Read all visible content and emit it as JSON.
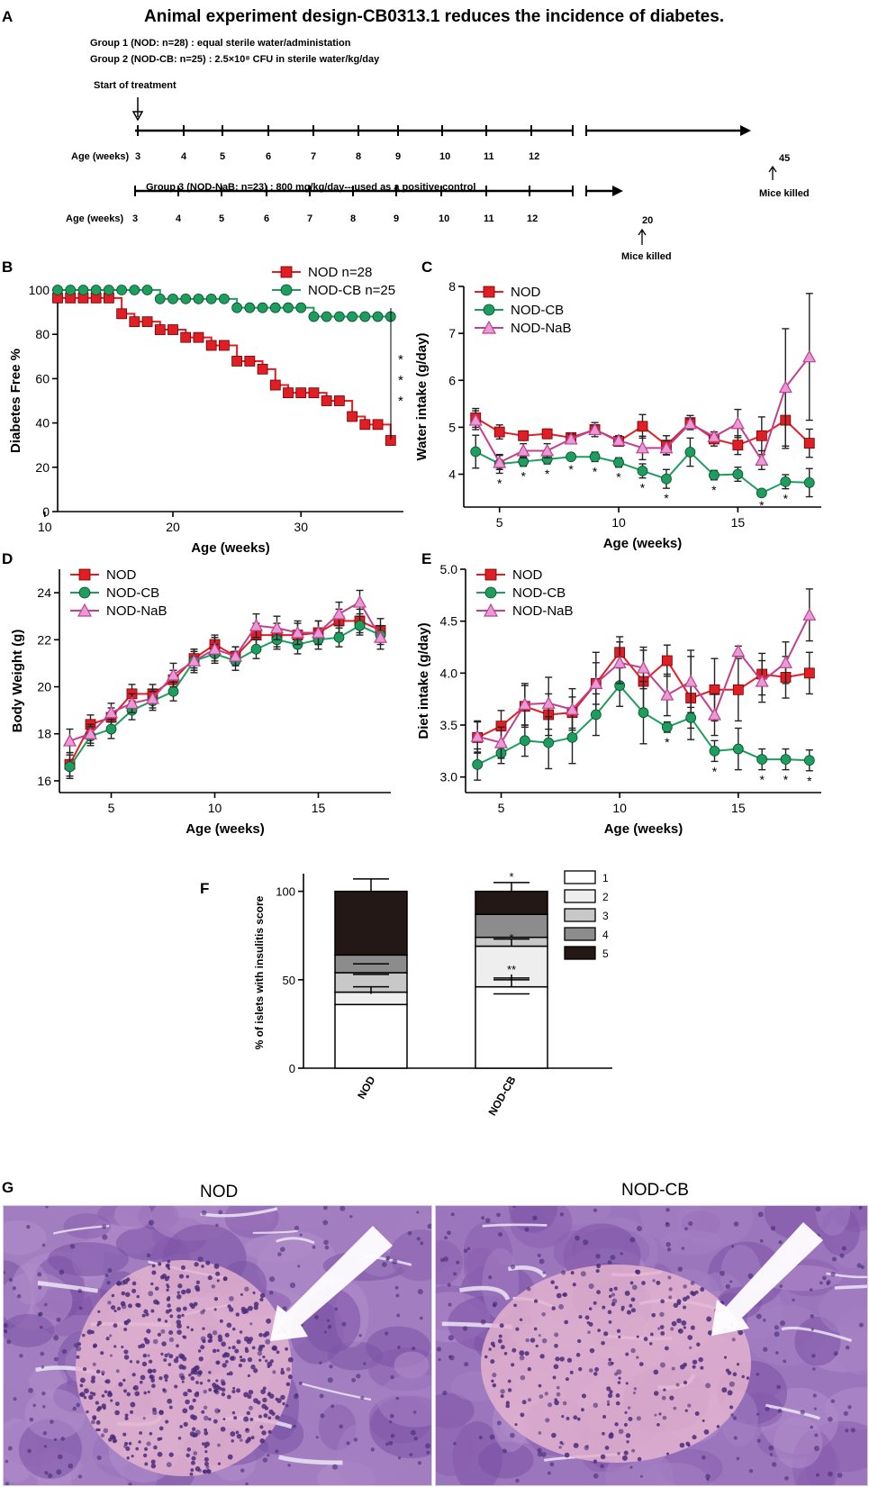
{
  "panelA": {
    "label": "A",
    "title": "Animal experiment design-CB0313.1 reduces the incidence of diabetes.",
    "group1": "Group 1 (NOD: n=28) : equal sterile water/administation",
    "group2": "Group 2 (NOD-CB: n=25) : 2.5×10⁸ CFU in sterile water/kg/day",
    "group3": "Group 3 (NOD-NaB: n=23) : 800 mg/kg/day---used  as a positive control",
    "start": "Start of treatment",
    "age_label": "Age (weeks)",
    "ages": [
      "3",
      "4",
      "5",
      "6",
      "7",
      "8",
      "9",
      "10",
      "11",
      "12"
    ],
    "end1": "45",
    "end2": "20",
    "killed": "Mice killed"
  },
  "chart_data": [
    {
      "panel": "B",
      "type": "line",
      "title": "",
      "xlabel": "Age (weeks)",
      "ylabel": "Diabetes Free %",
      "xlim": [
        11,
        38
      ],
      "ylim": [
        0,
        100
      ],
      "xticks": [
        10,
        20,
        30
      ],
      "yticks": [
        0,
        20,
        40,
        60,
        80,
        100
      ],
      "legend": "top-right",
      "annotation": "* * *",
      "series": [
        {
          "name": "NOD  n=28",
          "color": "#e01e26",
          "marker": "square",
          "x": [
            11,
            12,
            13,
            14,
            15,
            16,
            17,
            18,
            19,
            20,
            21,
            22,
            23,
            24,
            25,
            26,
            27,
            28,
            29,
            30,
            31,
            32,
            33,
            34,
            35,
            36,
            37
          ],
          "y": [
            96.4,
            96.4,
            96.4,
            96.4,
            96.4,
            89.3,
            85.7,
            85.7,
            82.1,
            82.1,
            78.6,
            78.6,
            75,
            75,
            67.9,
            67.9,
            64.3,
            57.1,
            53.6,
            53.6,
            53.6,
            50,
            50,
            42.9,
            39.3,
            39.3,
            32.1
          ]
        },
        {
          "name": "NOD-CB n=25",
          "color": "#1e9e5e",
          "marker": "circle",
          "x": [
            11,
            12,
            13,
            14,
            15,
            16,
            17,
            18,
            19,
            20,
            21,
            22,
            23,
            24,
            25,
            26,
            27,
            28,
            29,
            30,
            31,
            32,
            33,
            34,
            35,
            36,
            37
          ],
          "y": [
            100,
            100,
            100,
            100,
            100,
            100,
            100,
            100,
            96,
            96,
            96,
            96,
            96,
            96,
            92,
            92,
            92,
            92,
            92,
            92,
            88,
            88,
            88,
            88,
            88,
            88,
            88
          ]
        }
      ]
    },
    {
      "panel": "C",
      "type": "line",
      "xlabel": "Age (weeks)",
      "ylabel": "Water intake (g/day)",
      "xlim": [
        3.5,
        18.5
      ],
      "ylim": [
        3.3,
        8
      ],
      "xticks": [
        5,
        10,
        15
      ],
      "yticks": [
        4,
        5,
        6,
        7,
        8
      ],
      "legend": "top-left",
      "x": [
        4,
        5,
        6,
        7,
        8,
        9,
        10,
        11,
        12,
        13,
        14,
        15,
        16,
        17,
        18
      ],
      "series": [
        {
          "name": "NOD",
          "color": "#e01e26",
          "marker": "square",
          "y": [
            5.2,
            4.9,
            4.82,
            4.86,
            4.78,
            4.95,
            4.7,
            5.02,
            4.62,
            5.1,
            4.75,
            4.62,
            4.82,
            5.15,
            4.66
          ],
          "err": [
            0.2,
            0.15,
            0.1,
            0.1,
            0.1,
            0.15,
            0.1,
            0.25,
            0.2,
            0.15,
            0.15,
            0.2,
            0.4,
            0.6,
            0.3
          ]
        },
        {
          "name": "NOD-CB",
          "color": "#1e9e5e",
          "marker": "circle",
          "y": [
            4.48,
            4.22,
            4.27,
            4.32,
            4.37,
            4.37,
            4.25,
            4.07,
            3.9,
            4.47,
            3.98,
            4.0,
            3.6,
            3.84,
            3.82
          ],
          "err": [
            0.35,
            0.2,
            0.1,
            0.1,
            0.05,
            0.1,
            0.1,
            0.15,
            0.2,
            0.3,
            0.1,
            0.15,
            0.05,
            0.15,
            0.3
          ]
        },
        {
          "name": "NOD-NaB",
          "color": "#c0408c",
          "marker": "triangle",
          "y": [
            5.15,
            4.25,
            4.5,
            4.5,
            4.75,
            4.95,
            4.72,
            4.56,
            4.56,
            5.08,
            4.8,
            5.08,
            4.3,
            5.85,
            6.5
          ],
          "err": [
            0.2,
            0.15,
            0.15,
            0.15,
            0.1,
            0.1,
            0.1,
            0.25,
            0.15,
            0.1,
            0.1,
            0.3,
            0.2,
            1.25,
            1.35
          ]
        }
      ],
      "significance": [
        {
          "x": 5,
          "label": "*"
        },
        {
          "x": 6,
          "label": "*"
        },
        {
          "x": 7,
          "label": "*"
        },
        {
          "x": 8,
          "label": "*"
        },
        {
          "x": 9,
          "label": "*"
        },
        {
          "x": 10,
          "label": "*"
        },
        {
          "x": 11,
          "label": "*"
        },
        {
          "x": 12,
          "label": "*"
        },
        {
          "x": 14,
          "label": "*"
        },
        {
          "x": 16,
          "label": "*"
        },
        {
          "x": 17,
          "label": "*"
        }
      ]
    },
    {
      "panel": "D",
      "type": "line",
      "xlabel": "Age (weeks)",
      "ylabel": "Body Weight (g)",
      "xlim": [
        2.5,
        18.5
      ],
      "ylim": [
        15.5,
        25
      ],
      "xticks": [
        5,
        10,
        15
      ],
      "yticks": [
        16,
        18,
        20,
        22,
        24
      ],
      "legend": "top-left",
      "x": [
        3,
        4,
        5,
        6,
        7,
        8,
        9,
        10,
        11,
        12,
        13,
        14,
        15,
        16,
        17,
        18
      ],
      "series": [
        {
          "name": "NOD",
          "color": "#e01e26",
          "marker": "square",
          "y": [
            16.7,
            18.4,
            18.7,
            19.7,
            19.7,
            20.3,
            21.2,
            21.8,
            21.3,
            22.2,
            22.2,
            22.2,
            22.3,
            22.8,
            22.8,
            22.4
          ],
          "err": [
            0.5,
            0.4,
            0.4,
            0.4,
            0.4,
            0.4,
            0.4,
            0.4,
            0.4,
            0.5,
            0.5,
            0.5,
            0.5,
            0.5,
            0.5,
            0.5
          ]
        },
        {
          "name": "NOD-CB",
          "color": "#1e9e5e",
          "marker": "circle",
          "y": [
            16.6,
            17.9,
            18.2,
            19.0,
            19.4,
            19.8,
            21.1,
            21.4,
            21.1,
            21.6,
            22.0,
            21.8,
            22.0,
            22.1,
            22.6,
            22.2
          ],
          "err": [
            0.5,
            0.4,
            0.4,
            0.4,
            0.4,
            0.4,
            0.4,
            0.4,
            0.4,
            0.4,
            0.4,
            0.4,
            0.4,
            0.4,
            0.4,
            0.4
          ]
        },
        {
          "name": "NOD-NaB",
          "color": "#c0408c",
          "marker": "triangle",
          "y": [
            17.7,
            18.0,
            18.9,
            19.3,
            19.5,
            20.5,
            21.1,
            21.6,
            21.3,
            22.6,
            22.5,
            22.3,
            22.3,
            23.1,
            23.6,
            22.1
          ],
          "err": [
            0.5,
            0.4,
            0.4,
            0.4,
            0.4,
            0.5,
            0.5,
            0.5,
            0.4,
            0.5,
            0.5,
            0.5,
            0.5,
            0.5,
            0.5,
            0.5
          ]
        }
      ]
    },
    {
      "panel": "E",
      "type": "line",
      "xlabel": "Age (weeks)",
      "ylabel": "Diet intake (g/day)",
      "xlim": [
        3.5,
        18.5
      ],
      "ylim": [
        2.85,
        5.0
      ],
      "xticks": [
        5,
        10,
        15
      ],
      "yticks": [
        3.0,
        3.5,
        4.0,
        4.5,
        5.0
      ],
      "legend": "top-left",
      "x": [
        4,
        5,
        6,
        7,
        8,
        9,
        10,
        11,
        12,
        13,
        14,
        15,
        16,
        17,
        18
      ],
      "series": [
        {
          "name": "NOD",
          "color": "#e01e26",
          "marker": "square",
          "y": [
            3.38,
            3.49,
            3.68,
            3.6,
            3.62,
            3.9,
            4.2,
            3.92,
            4.12,
            3.76,
            3.84,
            3.84,
            3.99,
            3.96,
            4.0
          ],
          "err": [
            0.15,
            0.15,
            0.2,
            0.2,
            0.15,
            0.3,
            0.15,
            0.3,
            0.15,
            0.4,
            0.3,
            0.3,
            0.2,
            0.2,
            0.2
          ]
        },
        {
          "name": "NOD-CB",
          "color": "#1e9e5e",
          "marker": "circle",
          "y": [
            3.12,
            3.23,
            3.35,
            3.33,
            3.38,
            3.6,
            3.88,
            3.62,
            3.48,
            3.57,
            3.25,
            3.27,
            3.17,
            3.17,
            3.16
          ],
          "err": [
            0.15,
            0.1,
            0.15,
            0.25,
            0.25,
            0.2,
            0.2,
            0.3,
            0.05,
            0.1,
            0.1,
            0.2,
            0.1,
            0.1,
            0.1
          ]
        },
        {
          "name": "NOD-NaB",
          "color": "#c0408c",
          "marker": "triangle",
          "y": [
            3.39,
            3.33,
            3.7,
            3.71,
            3.65,
            3.9,
            4.1,
            4.05,
            3.79,
            3.92,
            3.6,
            4.21,
            3.92,
            4.1,
            4.56
          ],
          "err": [
            0.15,
            0.15,
            0.2,
            0.25,
            0.2,
            0.2,
            0.2,
            0.2,
            0.2,
            0.3,
            0.2,
            0.05,
            0.2,
            0.2,
            0.25
          ]
        }
      ],
      "significance": [
        {
          "x": 12,
          "label": "*"
        },
        {
          "x": 14,
          "label": "*"
        },
        {
          "x": 16,
          "label": "*"
        },
        {
          "x": 17,
          "label": "*"
        },
        {
          "x": 18,
          "label": "*"
        }
      ]
    },
    {
      "panel": "F",
      "type": "bar",
      "stacked": true,
      "ylabel": "% of islets with insulitis score",
      "ylim": [
        0,
        110
      ],
      "yticks": [
        0,
        50,
        100
      ],
      "categories": [
        "NOD",
        "NOD-CB"
      ],
      "series": [
        {
          "name": "1",
          "color": "#ffffff",
          "values": [
            36,
            46
          ]
        },
        {
          "name": "2",
          "color": "#eeeeee",
          "values": [
            7,
            23
          ]
        },
        {
          "name": "3",
          "color": "#c8c8c8",
          "values": [
            11,
            5
          ]
        },
        {
          "name": "4",
          "color": "#8c8c8c",
          "values": [
            10,
            13
          ]
        },
        {
          "name": "5",
          "color": "#231815",
          "values": [
            36,
            13
          ]
        }
      ],
      "errors_top": [
        [
          46,
          42
        ],
        [
          53,
          50
        ],
        [
          59,
          51
        ],
        [
          0,
          73
        ],
        [
          107,
          105
        ]
      ],
      "significance": [
        {
          "category": "NOD-CB",
          "label": "**"
        },
        {
          "category": "NOD-CB",
          "label": "*"
        },
        {
          "category": "NOD-CB",
          "label": "*"
        }
      ]
    }
  ],
  "panelG": {
    "label": "G",
    "left_title": "NOD",
    "right_title": "NOD-CB"
  },
  "colors": {
    "nod": "#e01e26",
    "cb": "#1e9e5e",
    "nab": "#c0408c"
  }
}
